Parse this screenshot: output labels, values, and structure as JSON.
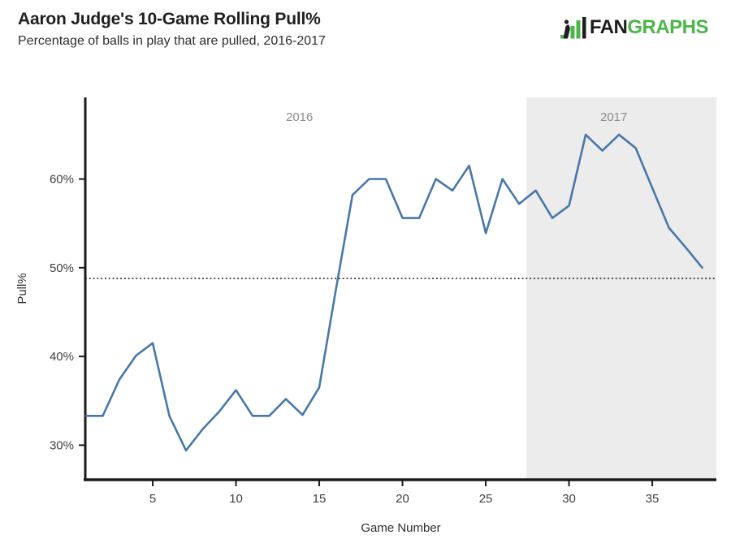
{
  "header": {
    "title": "Aaron Judge's 10-Game Rolling Pull%",
    "subtitle": "Percentage of balls in play that are pulled, 2016-2017",
    "logo": {
      "fan": "FAN",
      "graphs": "GRAPHS"
    }
  },
  "colors": {
    "line": "#4878a8",
    "shade": "#ececec",
    "axis": "#1a1a1a",
    "tick_text": "#404040",
    "era_text": "#8c8c8c",
    "logo_green": "#4bb749",
    "logo_dark": "#1e1e1e"
  },
  "chart_data": {
    "type": "line",
    "title": "Aaron Judge's 10-Game Rolling Pull%",
    "subtitle": "Percentage of balls in play that are pulled, 2016-2017",
    "xlabel": "Game Number",
    "ylabel": "Pull%",
    "x": [
      1,
      2,
      3,
      4,
      5,
      6,
      7,
      8,
      9,
      10,
      11,
      12,
      13,
      14,
      15,
      16,
      17,
      18,
      19,
      20,
      21,
      22,
      23,
      24,
      25,
      26,
      27,
      28,
      29,
      30,
      31,
      32,
      33,
      34,
      35,
      36,
      37,
      38
    ],
    "series": [
      {
        "name": "10-game rolling Pull%",
        "color": "#4878a8",
        "values": [
          33.3,
          33.3,
          37.4,
          40.1,
          41.5,
          33.3,
          29.4,
          31.8,
          33.8,
          36.2,
          33.3,
          33.3,
          35.2,
          33.4,
          36.5,
          47.5,
          58.2,
          60.0,
          60.0,
          55.6,
          55.6,
          60.0,
          58.7,
          61.5,
          53.9,
          60.0,
          57.2,
          58.7,
          55.6,
          57.0,
          65.0,
          63.2,
          65.0,
          63.5,
          59.0,
          54.5,
          52.3,
          50.0
        ]
      }
    ],
    "x_ticks": [
      5,
      10,
      15,
      20,
      25,
      30,
      35
    ],
    "y_ticks": [
      30,
      40,
      50,
      60
    ],
    "y_tick_suffix": "%",
    "xlim": [
      0.95,
      38.85
    ],
    "ylim": [
      26.1,
      69.2
    ],
    "grid": false,
    "legend": "none",
    "reference_line": {
      "value": 48.8,
      "style": "dotted"
    },
    "regions": [
      {
        "label": "2016",
        "from": 0.95,
        "to": 27.44,
        "fill": "#ffffff"
      },
      {
        "label": "2017",
        "from": 27.44,
        "to": 38.85,
        "fill": "#ececec"
      }
    ]
  }
}
